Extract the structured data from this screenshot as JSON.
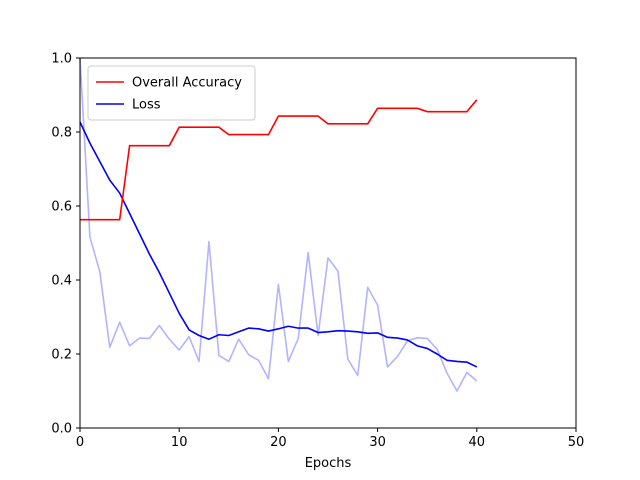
{
  "chart_data": {
    "type": "line",
    "title": "",
    "xlabel": "Epochs",
    "ylabel": "",
    "xlim": [
      0,
      50
    ],
    "ylim": [
      0,
      1.0
    ],
    "xticks": [
      "0",
      "10",
      "20",
      "30",
      "40",
      "50"
    ],
    "yticks": [
      "0.0",
      "0.2",
      "0.4",
      "0.6",
      "0.8",
      "1.0"
    ],
    "grid": false,
    "legend": "top-left",
    "series": [
      {
        "name": "Overall Accuracy",
        "color": "#ff0000",
        "x": [
          0,
          1,
          2,
          3,
          4,
          5,
          6,
          7,
          8,
          9,
          10,
          11,
          12,
          13,
          14,
          15,
          16,
          17,
          18,
          19,
          20,
          21,
          22,
          23,
          24,
          25,
          26,
          27,
          28,
          29,
          30,
          31,
          32,
          33,
          34,
          35,
          36,
          37,
          38,
          39,
          40
        ],
        "y": [
          0.563,
          0.563,
          0.563,
          0.563,
          0.563,
          0.763,
          0.763,
          0.763,
          0.763,
          0.763,
          0.813,
          0.813,
          0.813,
          0.813,
          0.813,
          0.793,
          0.793,
          0.793,
          0.793,
          0.793,
          0.843,
          0.843,
          0.843,
          0.843,
          0.843,
          0.822,
          0.822,
          0.822,
          0.822,
          0.822,
          0.864,
          0.864,
          0.864,
          0.864,
          0.864,
          0.855,
          0.855,
          0.855,
          0.855,
          0.855,
          0.887
        ]
      },
      {
        "name": "Loss",
        "color": "#0000ff",
        "x": [
          0,
          1,
          2,
          3,
          4,
          5,
          6,
          7,
          8,
          9,
          10,
          11,
          12,
          13,
          14,
          15,
          16,
          17,
          18,
          19,
          20,
          21,
          22,
          23,
          24,
          25,
          26,
          27,
          28,
          29,
          30,
          31,
          32,
          33,
          34,
          35,
          36,
          37,
          38,
          39,
          40
        ],
        "y": [
          0.827,
          0.77,
          0.72,
          0.67,
          0.635,
          0.58,
          0.525,
          0.47,
          0.42,
          0.365,
          0.31,
          0.265,
          0.25,
          0.24,
          0.252,
          0.25,
          0.26,
          0.27,
          0.268,
          0.262,
          0.268,
          0.275,
          0.27,
          0.27,
          0.258,
          0.26,
          0.263,
          0.262,
          0.26,
          0.256,
          0.257,
          0.245,
          0.243,
          0.238,
          0.222,
          0.215,
          0.2,
          0.183,
          0.18,
          0.178,
          0.165
        ]
      },
      {
        "name": "",
        "color": "#b3b3ff",
        "x": [
          0,
          1,
          2,
          3,
          4,
          5,
          6,
          7,
          8,
          9,
          10,
          11,
          12,
          13,
          14,
          15,
          16,
          17,
          18,
          19,
          20,
          21,
          22,
          23,
          24,
          25,
          26,
          27,
          28,
          29,
          30,
          31,
          32,
          33,
          34,
          35,
          36,
          37,
          38,
          39,
          40
        ],
        "y": [
          1.0,
          0.516,
          0.422,
          0.218,
          0.286,
          0.222,
          0.243,
          0.242,
          0.277,
          0.24,
          0.211,
          0.247,
          0.18,
          0.504,
          0.196,
          0.18,
          0.24,
          0.198,
          0.183,
          0.133,
          0.388,
          0.18,
          0.242,
          0.474,
          0.25,
          0.46,
          0.424,
          0.186,
          0.142,
          0.38,
          0.332,
          0.165,
          0.193,
          0.235,
          0.244,
          0.242,
          0.213,
          0.148,
          0.1,
          0.15,
          0.127
        ]
      }
    ]
  }
}
